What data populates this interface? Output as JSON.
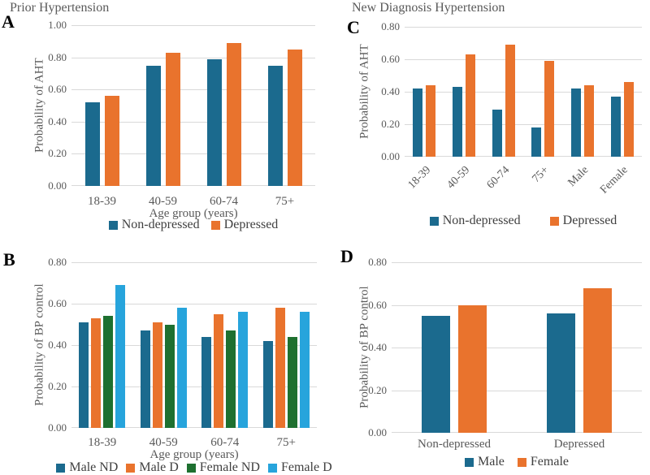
{
  "chart_data": [
    {
      "panel": "A",
      "type": "bar",
      "title": "Prior Hypertension",
      "ylabel": "Probability of AHT",
      "xlabel": "Age group (years)",
      "ylim": [
        0,
        1.0
      ],
      "yticks": [
        0.0,
        0.2,
        0.4,
        0.6,
        0.8,
        1.0
      ],
      "grid": true,
      "legend_position": "bottom",
      "categories": [
        "18-39",
        "40-59",
        "60-74",
        "75+"
      ],
      "series": [
        {
          "name": "Non-depressed",
          "color": "#1b6a8e",
          "values": [
            0.52,
            0.75,
            0.79,
            0.75
          ]
        },
        {
          "name": "Depressed",
          "color": "#e9732d",
          "values": [
            0.56,
            0.83,
            0.89,
            0.85
          ]
        }
      ]
    },
    {
      "panel": "C",
      "type": "bar",
      "title": "New Diagnosis Hypertension",
      "ylabel": "Probability of AHT",
      "xlabel": "",
      "ylim": [
        0,
        0.8
      ],
      "yticks": [
        0.0,
        0.2,
        0.4,
        0.6,
        0.8
      ],
      "grid": true,
      "legend_position": "bottom",
      "x_tick_rotation": 45,
      "categories": [
        "18-39",
        "40-59",
        "60-74",
        "75+",
        "Male",
        "Female"
      ],
      "series": [
        {
          "name": "Non-depressed",
          "color": "#1b6a8e",
          "values": [
            0.42,
            0.43,
            0.29,
            0.18,
            0.42,
            0.37
          ]
        },
        {
          "name": "Depressed",
          "color": "#e9732d",
          "values": [
            0.44,
            0.63,
            0.69,
            0.59,
            0.44,
            0.46
          ]
        }
      ]
    },
    {
      "panel": "B",
      "type": "bar",
      "title": "",
      "ylabel": "Probability of BP control",
      "xlabel": "Age group (years)",
      "ylim": [
        0,
        0.8
      ],
      "yticks": [
        0.0,
        0.2,
        0.4,
        0.6,
        0.8
      ],
      "grid": true,
      "legend_position": "bottom",
      "categories": [
        "18-39",
        "40-59",
        "60-74",
        "75+"
      ],
      "series": [
        {
          "name": "Male ND",
          "color": "#1b6a8e",
          "values": [
            0.51,
            0.47,
            0.44,
            0.42
          ]
        },
        {
          "name": "Male D",
          "color": "#e9732d",
          "values": [
            0.53,
            0.51,
            0.55,
            0.58
          ]
        },
        {
          "name": "Female ND",
          "color": "#1e7030",
          "values": [
            0.54,
            0.5,
            0.47,
            0.44
          ]
        },
        {
          "name": "Female D",
          "color": "#27a4dc",
          "values": [
            0.69,
            0.58,
            0.56,
            0.56
          ]
        }
      ]
    },
    {
      "panel": "D",
      "type": "bar",
      "title": "",
      "ylabel": "Probability of BP control",
      "xlabel": "",
      "ylim": [
        0,
        0.8
      ],
      "yticks": [
        0.0,
        0.2,
        0.4,
        0.6,
        0.8
      ],
      "grid": true,
      "legend_position": "bottom",
      "categories": [
        "Non-depressed",
        "Depressed"
      ],
      "series": [
        {
          "name": "Male",
          "color": "#1b6a8e",
          "values": [
            0.55,
            0.56
          ]
        },
        {
          "name": "Female",
          "color": "#e9732d",
          "values": [
            0.6,
            0.68
          ]
        }
      ]
    }
  ],
  "style": {
    "gridline_color": "#d9d9d9",
    "axis_text_color": "#595959",
    "legend_text_color": "#404040",
    "panel_letter_color": "#000000"
  }
}
